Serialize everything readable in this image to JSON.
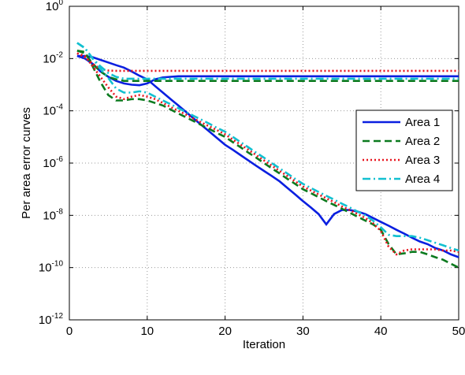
{
  "chart_data": {
    "type": "line",
    "yscale": "log",
    "grid": true,
    "legend": "east",
    "xlabel": "Iteration",
    "ylabel": "Per area error curves",
    "xlim": [
      0,
      50
    ],
    "xticks": [
      0,
      10,
      20,
      30,
      40,
      50
    ],
    "ylim": [
      1e-12,
      1
    ],
    "yticks": [
      {
        "value": 1e-12,
        "label": "10^-12"
      },
      {
        "value": 1e-10,
        "label": "10^-10"
      },
      {
        "value": 1e-08,
        "label": "10^-8"
      },
      {
        "value": 1e-06,
        "label": "10^-6"
      },
      {
        "value": 0.0001,
        "label": "10^-4"
      },
      {
        "value": 0.01,
        "label": "10^-2"
      },
      {
        "value": 1,
        "label": "10^0"
      }
    ],
    "x": [
      1,
      2,
      3,
      4,
      5,
      6,
      7,
      8,
      9,
      10,
      11,
      12,
      13,
      14,
      15,
      16,
      17,
      18,
      19,
      20,
      21,
      22,
      23,
      24,
      25,
      26,
      27,
      28,
      29,
      30,
      31,
      32,
      33,
      34,
      35,
      36,
      37,
      38,
      39,
      40,
      41,
      42,
      43,
      44,
      45,
      46,
      47,
      48,
      49,
      50
    ],
    "series": [
      {
        "name": "Area 1",
        "color": "#0a1fe0",
        "dash": "none",
        "curves": [
          [
            0.0126,
            0.0126,
            0.0112,
            0.0089,
            0.0071,
            0.0056,
            0.0045,
            0.0032,
            0.0022,
            0.0016,
            0.00089,
            0.0005,
            0.00028,
            0.00016,
            8.9e-05,
            5e-05,
            2.8e-05,
            1.6e-05,
            8.9e-06,
            5e-06,
            3.2e-06,
            2e-06,
            1.26e-06,
            7.9e-07,
            5e-07,
            3.2e-07,
            2e-07,
            1.12e-07,
            6.3e-08,
            3.5e-08,
            2e-08,
            1.12e-08,
            4.5e-09,
            1.12e-08,
            1.6e-08,
            1.6e-08,
            1.4e-08,
            1.12e-08,
            7.9e-09,
            5.6e-09,
            4e-09,
            2.8e-09,
            2e-09,
            1.4e-09,
            1e-09,
            7.9e-10,
            5.6e-10,
            4.5e-10,
            3.2e-10,
            2.5e-10
          ],
          [
            0.0126,
            0.01,
            0.0063,
            0.0032,
            0.002,
            0.0014,
            0.00112,
            0.001,
            0.00095,
            0.00112,
            0.0016,
            0.0019,
            0.002,
            0.0021,
            0.0021,
            0.0021,
            0.0021,
            0.0021,
            0.0021,
            0.0021,
            0.0021,
            0.0021,
            0.0021,
            0.0021,
            0.0021,
            0.0021,
            0.0021,
            0.0021,
            0.0021,
            0.0021,
            0.0021,
            0.0021,
            0.0021,
            0.0021,
            0.0021,
            0.0021,
            0.0021,
            0.0021,
            0.0021,
            0.0021,
            0.0021,
            0.0021,
            0.0021,
            0.0021,
            0.0021,
            0.0021,
            0.0021,
            0.0021,
            0.0021,
            0.0021
          ]
        ]
      },
      {
        "name": "Area 2",
        "color": "#0b7a1e",
        "dash": "9,5",
        "curves": [
          [
            0.02,
            0.018,
            0.005,
            0.00126,
            0.0004,
            0.00025,
            0.00025,
            0.00028,
            0.00028,
            0.00025,
            0.0002,
            0.00016,
            0.000112,
            7.9e-05,
            5.6e-05,
            4e-05,
            2.8e-05,
            2e-05,
            1.4e-05,
            1e-05,
            6.3e-06,
            4e-06,
            2.5e-06,
            1.6e-06,
            1e-06,
            6.3e-07,
            4e-07,
            2.5e-07,
            1.6e-07,
            1e-07,
            7.1e-08,
            5e-08,
            3.5e-08,
            2.5e-08,
            1.8e-08,
            1.26e-08,
            8.9e-09,
            6.3e-09,
            4.5e-09,
            2.8e-09,
            7.9e-10,
            3.2e-10,
            3.5e-10,
            4e-10,
            4e-10,
            3.2e-10,
            2.5e-10,
            2e-10,
            1.4e-10,
            1e-10
          ],
          [
            0.02,
            0.016,
            0.0063,
            0.0032,
            0.002,
            0.0016,
            0.0014,
            0.0014,
            0.0014,
            0.0014,
            0.0014,
            0.0014,
            0.0014,
            0.0014,
            0.0014,
            0.0014,
            0.0014,
            0.0014,
            0.0014,
            0.0014,
            0.0014,
            0.0014,
            0.0014,
            0.0014,
            0.0014,
            0.0014,
            0.0014,
            0.0014,
            0.0014,
            0.0014,
            0.0014,
            0.0014,
            0.0014,
            0.0014,
            0.0014,
            0.0014,
            0.0014,
            0.0014,
            0.0014,
            0.0014,
            0.0014,
            0.0014,
            0.0014,
            0.0014,
            0.0014,
            0.0014,
            0.0014,
            0.0014,
            0.0014,
            0.0014
          ]
        ]
      },
      {
        "name": "Area 3",
        "color": "#e8141e",
        "dash": "2,3",
        "curves": [
          [
            0.016,
            0.0126,
            0.005,
            0.002,
            0.00079,
            0.00035,
            0.00028,
            0.00035,
            0.0004,
            0.00035,
            0.00028,
            0.0002,
            0.00014,
            0.0001,
            7.1e-05,
            5e-05,
            3.5e-05,
            2.5e-05,
            1.8e-05,
            1.26e-05,
            7.9e-06,
            5e-06,
            3.2e-06,
            2e-06,
            1.26e-06,
            7.9e-07,
            5e-07,
            3.2e-07,
            2e-07,
            1.26e-07,
            8.9e-08,
            6.3e-08,
            4.5e-08,
            3.2e-08,
            2.2e-08,
            1.6e-08,
            1.12e-08,
            7.9e-09,
            5e-09,
            2.5e-09,
            6.3e-10,
            3.2e-10,
            4.5e-10,
            5e-10,
            5e-10,
            5e-10,
            5e-10,
            4.5e-10,
            4.5e-10,
            4e-10
          ],
          [
            0.016,
            0.0112,
            0.0063,
            0.004,
            0.0035,
            0.0034,
            0.0034,
            0.0034,
            0.0034,
            0.0034,
            0.0034,
            0.0034,
            0.0034,
            0.0034,
            0.0034,
            0.0034,
            0.0034,
            0.0034,
            0.0034,
            0.0034,
            0.0034,
            0.0034,
            0.0034,
            0.0034,
            0.0034,
            0.0034,
            0.0034,
            0.0034,
            0.0034,
            0.0034,
            0.0034,
            0.0034,
            0.0034,
            0.0034,
            0.0034,
            0.0034,
            0.0034,
            0.0034,
            0.0034,
            0.0034,
            0.0034,
            0.0034,
            0.0034,
            0.0034,
            0.0034,
            0.0034,
            0.0034,
            0.0034,
            0.0034,
            0.0034
          ]
        ]
      },
      {
        "name": "Area 4",
        "color": "#12c0d0",
        "dash": "10,4,2,4",
        "curves": [
          [
            0.04,
            0.025,
            0.01,
            0.004,
            0.0018,
            0.00071,
            0.0005,
            0.0005,
            0.00056,
            0.0005,
            0.00035,
            0.00025,
            0.00018,
            0.000126,
            8.9e-05,
            6.3e-05,
            4.5e-05,
            3.2e-05,
            2.2e-05,
            1.6e-05,
            1e-05,
            6.3e-06,
            4e-06,
            2.5e-06,
            1.6e-06,
            1e-06,
            6.3e-07,
            4e-07,
            2.5e-07,
            1.6e-07,
            1.12e-07,
            7.9e-08,
            5.6e-08,
            4e-08,
            2.8e-08,
            2e-08,
            1.4e-08,
            1e-08,
            6.3e-09,
            3.5e-09,
            1.8e-09,
            1.6e-09,
            1.6e-09,
            1.6e-09,
            1.4e-09,
            1.12e-09,
            8.9e-10,
            7.1e-10,
            5.6e-10,
            4.5e-10
          ],
          [
            0.04,
            0.025,
            0.01,
            0.005,
            0.0028,
            0.002,
            0.0017,
            0.0017,
            0.0017,
            0.0017,
            0.0017,
            0.0017,
            0.0017,
            0.0017,
            0.0017,
            0.0017,
            0.0017,
            0.0017,
            0.0017,
            0.0017,
            0.0017,
            0.0017,
            0.0017,
            0.0017,
            0.0017,
            0.0017,
            0.0017,
            0.0017,
            0.0017,
            0.0017,
            0.0017,
            0.0017,
            0.0017,
            0.0017,
            0.0017,
            0.0017,
            0.0017,
            0.0017,
            0.0017,
            0.0017,
            0.0017,
            0.0017,
            0.0017,
            0.0017,
            0.0017,
            0.0017,
            0.0017,
            0.0017,
            0.0017,
            0.0017
          ]
        ]
      }
    ]
  }
}
